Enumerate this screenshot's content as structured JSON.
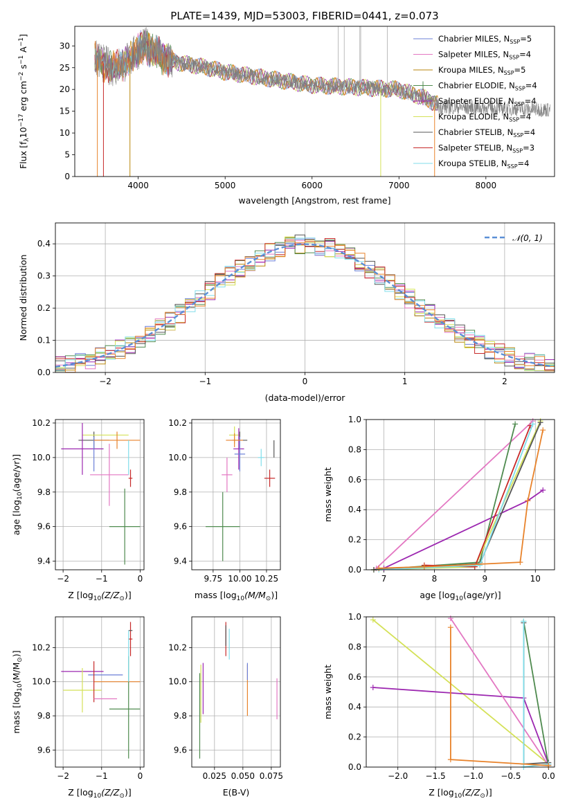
{
  "figure": {
    "title": "PLATE=1439, MJD=53003, FIBERID=0441, z=0.073"
  },
  "colors": {
    "chabrier_miles": "#6b7fd7",
    "salpeter_miles": "#e377c2",
    "kroupa_miles": "#b8860b",
    "chabrier_elodie": "#4e8a4e",
    "salpeter_elodie": "#9c27b0",
    "kroupa_elodie": "#d4e157",
    "chabrier_stelib": "#555555",
    "salpeter_stelib": "#c62828",
    "kroupa_stelib": "#80deea",
    "orange": "#e8822a",
    "normal": "#5b8fd6"
  },
  "legend_spectrum": [
    {
      "text": "Chabrier MILES, N",
      "sub": "SSP",
      "suffix": "=5",
      "color_key": "chabrier_miles",
      "marker": false
    },
    {
      "text": "Salpeter MILES, N",
      "sub": "SSP",
      "suffix": "=4",
      "color_key": "salpeter_miles",
      "marker": false
    },
    {
      "text": "Kroupa MILES, N",
      "sub": "SSP",
      "suffix": "=5",
      "color_key": "kroupa_miles",
      "marker": false
    },
    {
      "text": "Chabrier ELODIE, N",
      "sub": "SSP",
      "suffix": "=4",
      "color_key": "chabrier_elodie",
      "marker": true
    },
    {
      "text": "Salpeter ELODIE, N",
      "sub": "SSP",
      "suffix": "=4",
      "color_key": "salpeter_elodie",
      "marker": true
    },
    {
      "text": "Kroupa ELODIE, N",
      "sub": "SSP",
      "suffix": "=4",
      "color_key": "kroupa_elodie",
      "marker": false
    },
    {
      "text": "Chabrier STELIB, N",
      "sub": "SSP",
      "suffix": "=4",
      "color_key": "chabrier_stelib",
      "marker": false
    },
    {
      "text": "Salpeter STELIB, N",
      "sub": "SSP",
      "suffix": "=3",
      "color_key": "salpeter_stelib",
      "marker": false
    },
    {
      "text": "Kroupa STELIB, N",
      "sub": "SSP",
      "suffix": "=4",
      "color_key": "kroupa_stelib",
      "marker": false
    }
  ],
  "legend_hist": {
    "text": "𝒩(0, 1)",
    "color_key": "normal"
  },
  "chart_data": [
    {
      "id": "spectrum",
      "type": "line",
      "xlabel": "wavelength [Angstrom, rest frame]",
      "ylabel": "Flux [f",
      "ylabel_sub": "λ",
      "ylabel_mid": "10",
      "ylabel_sup1": "−17",
      "ylabel_mid2": " erg cm",
      "ylabel_sup2": "−2",
      "ylabel_mid3": " s",
      "ylabel_sup3": "−1",
      "ylabel_mid4": " A",
      "ylabel_sup4": "−1",
      "ylabel_end": "]",
      "xlim": [
        3270,
        8790
      ],
      "ylim": [
        0,
        34.5
      ],
      "xticks": [
        4000,
        5000,
        6000,
        7000,
        8000
      ],
      "yticks": [
        0,
        5,
        10,
        15,
        20,
        25,
        30
      ],
      "continuum": [
        [
          3500,
          27
        ],
        [
          3700,
          25
        ],
        [
          3850,
          26
        ],
        [
          4000,
          29
        ],
        [
          4100,
          30
        ],
        [
          4300,
          27
        ],
        [
          4500,
          26
        ],
        [
          4800,
          25
        ],
        [
          5000,
          24
        ],
        [
          5500,
          22.5
        ],
        [
          6000,
          21
        ],
        [
          6500,
          20.5
        ],
        [
          7000,
          20
        ],
        [
          7300,
          18
        ],
        [
          7450,
          16.5
        ]
      ],
      "dips": [
        [
          3530,
          0
        ],
        [
          3600,
          0
        ],
        [
          3905,
          0
        ],
        [
          6790,
          0
        ],
        [
          7410,
          0
        ]
      ]
    },
    {
      "id": "residuals",
      "type": "histogram",
      "xlabel": "(data-model)/error",
      "ylabel": "Normed distribution",
      "xlim": [
        -2.5,
        2.5
      ],
      "ylim": [
        0,
        0.465
      ],
      "xticks": [
        -2,
        -1,
        0,
        1,
        2
      ],
      "yticks": [
        0.0,
        0.1,
        0.2,
        0.3,
        0.4
      ],
      "bin_width": 0.1,
      "normal": {
        "mean": 0,
        "sigma": 1
      }
    },
    {
      "id": "age_vs_Z",
      "type": "scatter",
      "xlabel": "Z [log",
      "xlabel_sub": "10",
      "xlabel_mid": "(Z/Z",
      "xlabel_sub2": "⊙",
      "xlabel_end": ")]",
      "ylabel": "age  [log",
      "ylabel_sub": "10",
      "ylabel_end": "(age/yr)]",
      "xlim": [
        -2.2,
        0.1
      ],
      "ylim": [
        9.35,
        10.22
      ],
      "xticks": [
        -2,
        -1,
        0
      ],
      "yticks": [
        9.4,
        9.6,
        9.8,
        10.0,
        10.2
      ],
      "points": [
        {
          "x": -1.2,
          "y": 10.1,
          "xerr": 0.4,
          "yerr": 0.05,
          "color_key": "chabrier_stelib"
        },
        {
          "x": -0.9,
          "y": 10.13,
          "xerr": 0.6,
          "yerr": 0.0,
          "color_key": "kroupa_elodie"
        },
        {
          "x": -1.5,
          "y": 10.05,
          "xerr": 0.55,
          "yerr": 0.15,
          "color_key": "salpeter_elodie"
        },
        {
          "x": -1.2,
          "y": 10.02,
          "xerr": 0.0,
          "yerr": 0.1,
          "color_key": "chabrier_miles"
        },
        {
          "x": -0.6,
          "y": 10.1,
          "xerr": 0.6,
          "yerr": 0.05,
          "color_key": "orange"
        },
        {
          "x": -0.8,
          "y": 9.9,
          "xerr": 0.5,
          "yerr": 0.18,
          "color_key": "salpeter_miles"
        },
        {
          "x": -0.4,
          "y": 9.6,
          "xerr": 0.4,
          "yerr": 0.22,
          "color_key": "chabrier_elodie"
        },
        {
          "x": -0.25,
          "y": 9.88,
          "xerr": 0.05,
          "yerr": 0.05,
          "color_key": "salpeter_stelib"
        },
        {
          "x": -0.3,
          "y": 10.0,
          "xerr": 0.0,
          "yerr": 0.1,
          "color_key": "kroupa_stelib"
        }
      ]
    },
    {
      "id": "age_vs_mass",
      "type": "scatter",
      "xlabel": "mass [log",
      "xlabel_sub": "10",
      "xlabel_mid": "(M/M",
      "xlabel_sub2": "⊙",
      "xlabel_end": ")]",
      "xlim": [
        9.55,
        10.38
      ],
      "ylim": [
        9.35,
        10.22
      ],
      "xticks": [
        9.75,
        10.0,
        10.25
      ],
      "xticklabels": [
        "9.75",
        "10.00",
        "10.25"
      ],
      "yticks": [
        9.4,
        9.6,
        9.8,
        10.0,
        10.2
      ],
      "points": [
        {
          "x": 9.95,
          "y": 10.13,
          "xerr": 0.05,
          "yerr": 0.05,
          "color_key": "kroupa_elodie"
        },
        {
          "x": 10.0,
          "y": 10.1,
          "xerr": 0.07,
          "yerr": 0.05,
          "color_key": "chabrier_stelib"
        },
        {
          "x": 9.99,
          "y": 10.05,
          "xerr": 0.05,
          "yerr": 0.12,
          "color_key": "salpeter_elodie"
        },
        {
          "x": 10.0,
          "y": 10.02,
          "xerr": 0.05,
          "yerr": 0.1,
          "color_key": "chabrier_miles"
        },
        {
          "x": 9.95,
          "y": 10.1,
          "xerr": 0.08,
          "yerr": 0.04,
          "color_key": "orange"
        },
        {
          "x": 9.88,
          "y": 9.9,
          "xerr": 0.05,
          "yerr": 0.1,
          "color_key": "salpeter_miles"
        },
        {
          "x": 9.84,
          "y": 9.6,
          "xerr": 0.16,
          "yerr": 0.2,
          "color_key": "chabrier_elodie"
        },
        {
          "x": 10.28,
          "y": 9.88,
          "xerr": 0.05,
          "yerr": 0.05,
          "color_key": "salpeter_stelib"
        },
        {
          "x": 10.2,
          "y": 10.0,
          "xerr": 0.03,
          "yerr": 0.05,
          "color_key": "kroupa_stelib"
        },
        {
          "x": 10.32,
          "y": 10.05,
          "xerr": 0.0,
          "yerr": 0.05,
          "color_key": "chabrier_stelib"
        }
      ]
    },
    {
      "id": "weight_vs_age",
      "type": "line",
      "xlabel": "age  [log",
      "xlabel_sub": "10",
      "xlabel_end": "(age/yr)]",
      "ylabel": "mass weight",
      "xlim": [
        6.65,
        10.38
      ],
      "ylim": [
        0,
        1.0
      ],
      "xticks": [
        7,
        8,
        9,
        10
      ],
      "yticks": [
        0.0,
        0.2,
        0.4,
        0.6,
        0.8,
        1.0
      ],
      "series": [
        {
          "color_key": "salpeter_miles",
          "points": [
            [
              6.85,
              0.01
            ],
            [
              9.95,
              0.99
            ]
          ]
        },
        {
          "color_key": "salpeter_elodie",
          "points": [
            [
              7.0,
              0.01
            ],
            [
              9.85,
              0.46
            ],
            [
              10.15,
              0.53
            ]
          ]
        },
        {
          "color_key": "chabrier_elodie",
          "points": [
            [
              6.8,
              0.0
            ],
            [
              8.9,
              0.05
            ],
            [
              9.6,
              0.97
            ]
          ]
        },
        {
          "color_key": "kroupa_elodie",
          "points": [
            [
              6.8,
              0.0
            ],
            [
              8.8,
              0.02
            ],
            [
              10.1,
              0.99
            ]
          ]
        },
        {
          "color_key": "chabrier_stelib",
          "points": [
            [
              6.8,
              0.0
            ],
            [
              8.9,
              0.04
            ],
            [
              10.1,
              0.98
            ]
          ]
        },
        {
          "color_key": "salpeter_stelib",
          "points": [
            [
              7.8,
              0.03
            ],
            [
              8.8,
              0.02
            ],
            [
              9.9,
              0.96
            ]
          ]
        },
        {
          "color_key": "kroupa_stelib",
          "points": [
            [
              6.9,
              0.0
            ],
            [
              8.9,
              0.03
            ],
            [
              9.95,
              0.97
            ]
          ]
        },
        {
          "color_key": "orange",
          "points": [
            [
              6.9,
              0.01
            ],
            [
              7.8,
              0.02
            ],
            [
              9.7,
              0.05
            ],
            [
              9.85,
              0.46
            ],
            [
              10.15,
              0.93
            ]
          ]
        }
      ]
    },
    {
      "id": "mass_vs_Z",
      "type": "scatter",
      "xlabel": "Z [log",
      "xlabel_sub": "10",
      "xlabel_mid": "(Z/Z",
      "xlabel_sub2": "⊙",
      "xlabel_end": ")]",
      "ylabel": "mass [log",
      "ylabel_sub": "10",
      "ylabel_mid": "(M/M",
      "ylabel_sub2": "⊙",
      "ylabel_end": ")]",
      "xlim": [
        -2.2,
        0.1
      ],
      "ylim": [
        9.5,
        10.38
      ],
      "xticks": [
        -2,
        -1,
        0
      ],
      "yticks": [
        9.6,
        9.8,
        10.0,
        10.2
      ],
      "points": [
        {
          "x": -1.5,
          "y": 10.06,
          "xerr": 0.55,
          "yerr": 0.0,
          "color_key": "salpeter_elodie"
        },
        {
          "x": -0.9,
          "y": 10.04,
          "xerr": 0.45,
          "yerr": 0.0,
          "color_key": "chabrier_miles"
        },
        {
          "x": -1.5,
          "y": 9.95,
          "xerr": 0.5,
          "yerr": 0.13,
          "color_key": "kroupa_elodie"
        },
        {
          "x": -0.6,
          "y": 10.0,
          "xerr": 0.6,
          "yerr": 0.0,
          "color_key": "orange"
        },
        {
          "x": -1.2,
          "y": 10.0,
          "xerr": 0.0,
          "yerr": 0.12,
          "color_key": "salpeter_stelib"
        },
        {
          "x": -0.9,
          "y": 9.9,
          "xerr": 0.3,
          "yerr": 0.0,
          "color_key": "salpeter_miles"
        },
        {
          "x": -0.4,
          "y": 9.84,
          "xerr": 0.4,
          "yerr": 0.0,
          "color_key": "chabrier_elodie"
        },
        {
          "x": -0.3,
          "y": 9.85,
          "xerr": 0.0,
          "yerr": 0.3,
          "color_key": "chabrier_elodie"
        },
        {
          "x": -0.25,
          "y": 10.25,
          "xerr": 0.05,
          "yerr": 0.1,
          "color_key": "salpeter_stelib"
        },
        {
          "x": -0.25,
          "y": 10.3,
          "xerr": 0.05,
          "yerr": 0.0,
          "color_key": "chabrier_stelib"
        },
        {
          "x": -0.3,
          "y": 10.15,
          "xerr": 0.0,
          "yerr": 0.15,
          "color_key": "kroupa_stelib"
        }
      ]
    },
    {
      "id": "mass_vs_EBV",
      "type": "scatter",
      "xlabel": "E(B-V)",
      "xlim": [
        0.005,
        0.083
      ],
      "ylim": [
        9.5,
        10.38
      ],
      "xticks": [
        0.025,
        0.05,
        0.075
      ],
      "xticklabels": [
        "0.025",
        "0.050",
        "0.075"
      ],
      "yticks": [
        9.6,
        9.8,
        10.0,
        10.2
      ],
      "points": [
        {
          "x": 0.012,
          "y": 9.8,
          "xerr": 0.0,
          "yerr": 0.25,
          "color_key": "chabrier_elodie"
        },
        {
          "x": 0.013,
          "y": 9.93,
          "xerr": 0.0,
          "yerr": 0.17,
          "color_key": "kroupa_elodie"
        },
        {
          "x": 0.015,
          "y": 9.96,
          "xerr": 0.0,
          "yerr": 0.15,
          "color_key": "salpeter_elodie"
        },
        {
          "x": 0.035,
          "y": 10.25,
          "xerr": 0.0,
          "yerr": 0.1,
          "color_key": "salpeter_stelib"
        },
        {
          "x": 0.035,
          "y": 10.27,
          "xerr": 0.0,
          "yerr": 0.06,
          "color_key": "chabrier_stelib"
        },
        {
          "x": 0.038,
          "y": 10.22,
          "xerr": 0.0,
          "yerr": 0.09,
          "color_key": "kroupa_stelib"
        },
        {
          "x": 0.054,
          "y": 9.95,
          "xerr": 0.0,
          "yerr": 0.15,
          "color_key": "orange"
        },
        {
          "x": 0.054,
          "y": 10.06,
          "xerr": 0.0,
          "yerr": 0.05,
          "color_key": "chabrier_miles"
        },
        {
          "x": 0.08,
          "y": 9.9,
          "xerr": 0.0,
          "yerr": 0.12,
          "color_key": "salpeter_miles"
        }
      ]
    },
    {
      "id": "weight_vs_Z",
      "type": "line",
      "xlabel": "Z [log",
      "xlabel_sub": "10",
      "xlabel_mid": "(Z/Z",
      "xlabel_sub2": "⊙",
      "xlabel_end": ")]",
      "ylabel": "mass weight",
      "xlim": [
        -2.42,
        0.08
      ],
      "ylim": [
        0,
        1.0
      ],
      "xticks": [
        -2.0,
        -1.5,
        -1.0,
        -0.5,
        0.0
      ],
      "xticklabels": [
        "−2.0",
        "−1.5",
        "−1.0",
        "−0.5",
        "0.0"
      ],
      "yticks": [
        0.0,
        0.2,
        0.4,
        0.6,
        0.8,
        1.0
      ],
      "series": [
        {
          "color_key": "kroupa_elodie",
          "points": [
            [
              -2.33,
              0.98
            ],
            [
              0.0,
              0.02
            ]
          ]
        },
        {
          "color_key": "salpeter_elodie",
          "points": [
            [
              -2.33,
              0.53
            ],
            [
              -0.33,
              0.46
            ],
            [
              0.0,
              0.02
            ]
          ]
        },
        {
          "color_key": "salpeter_miles",
          "points": [
            [
              -1.3,
              0.99
            ],
            [
              0.0,
              0.01
            ]
          ]
        },
        {
          "color_key": "chabrier_elodie",
          "points": [
            [
              -0.33,
              0.97
            ],
            [
              0.0,
              0.01
            ]
          ]
        },
        {
          "color_key": "chabrier_stelib",
          "points": [
            [
              -0.33,
              0.96
            ],
            [
              -0.33,
              0.02
            ],
            [
              0.0,
              0.03
            ]
          ]
        },
        {
          "color_key": "kroupa_stelib",
          "points": [
            [
              -0.33,
              0.97
            ],
            [
              -0.33,
              0.0
            ],
            [
              0.0,
              0.02
            ]
          ]
        },
        {
          "color_key": "orange",
          "points": [
            [
              -1.3,
              0.93
            ],
            [
              -1.3,
              0.05
            ],
            [
              0.0,
              0.01
            ]
          ]
        }
      ]
    }
  ]
}
